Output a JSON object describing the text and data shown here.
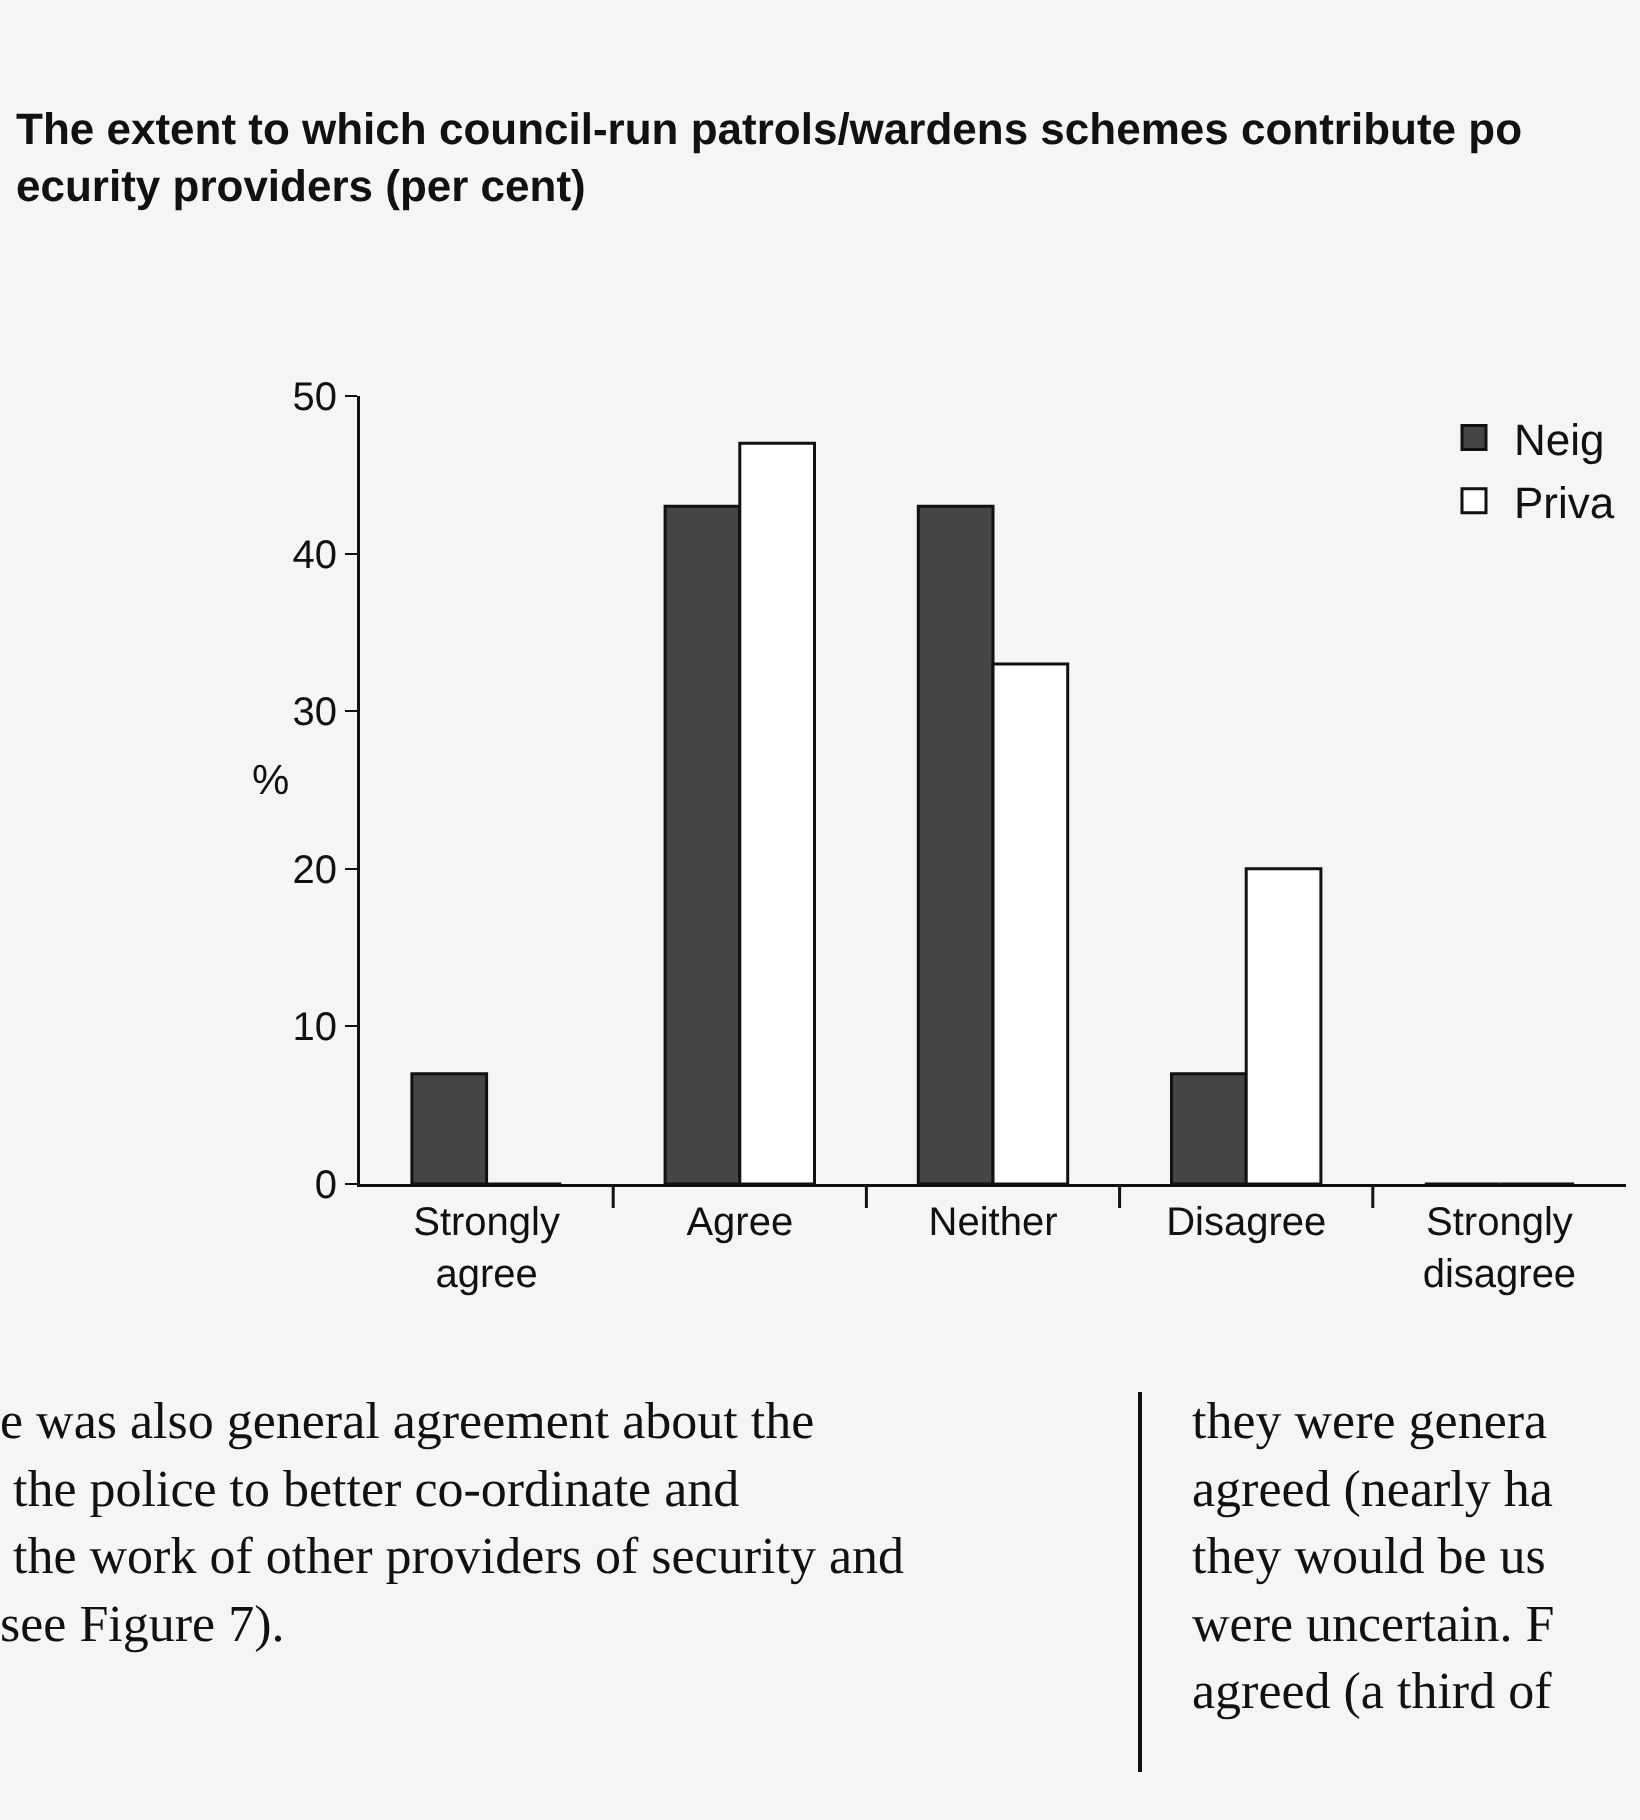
{
  "chart_data": {
    "type": "bar",
    "title": "The extent to which council-run patrols/wardens schemes contribute po\necurity providers (per cent)",
    "ylabel": "%",
    "categories": [
      "Strongly agree",
      "Agree",
      "Neither",
      "Disagree",
      "Strongly disagree"
    ],
    "series": [
      {
        "name": "Neig",
        "color": "#454545",
        "values": [
          7,
          43,
          43,
          7,
          0
        ]
      },
      {
        "name": "Priva",
        "color": "#ffffff",
        "values": [
          0,
          47,
          33,
          20,
          0
        ]
      }
    ],
    "ylim": [
      0,
      50
    ],
    "yticks": [
      0,
      10,
      20,
      30,
      40,
      50
    ],
    "grid": false,
    "legend": "top right",
    "annotations": [
      "e was also general agreement about the\n the police to better co-ordinate and\n the work of other providers of security and\nsee Figure 7).",
      "they were genera\nagreed (nearly ha\nthey would be us\nwere uncertain. F\nagreed (a third of"
    ]
  }
}
